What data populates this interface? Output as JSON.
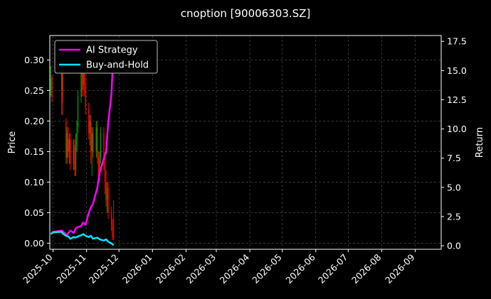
{
  "chart_data": {
    "type": "line",
    "title": "cnoption [90006303.SZ]",
    "ylabel_left": "Price",
    "ylabel_right": "Return",
    "ylim_left": [
      -0.01,
      0.34
    ],
    "ylim_right": [
      -0.3,
      18.0
    ],
    "yticks_left": [
      "0.00",
      "0.05",
      "0.10",
      "0.15",
      "0.20",
      "0.25",
      "0.30"
    ],
    "yticks_right": [
      "0.0",
      "2.5",
      "5.0",
      "7.5",
      "10.0",
      "12.5",
      "15.0",
      "17.5"
    ],
    "xlim": [
      "2025-09-28",
      "2026-09-25"
    ],
    "xticks": [
      "2025-10",
      "2025-11",
      "2025-12",
      "2026-01",
      "2026-02",
      "2026-03",
      "2026-04",
      "2026-05",
      "2026-06",
      "2026-07",
      "2026-08",
      "2026-09"
    ],
    "grid": true,
    "legend_position": "top-left",
    "colors": {
      "up": "#00a000",
      "down": "#ff0000",
      "strategy": "#ff00ff",
      "buyhold": "#00e5ff",
      "background": "#000000",
      "text": "#ffffff"
    },
    "candles": [
      {
        "date": "2025-09-29",
        "open": 0.25,
        "close": 0.27,
        "high": 0.29,
        "low": 0.24
      },
      {
        "date": "2025-09-30",
        "open": 0.27,
        "close": 0.24,
        "high": 0.275,
        "low": 0.23
      },
      {
        "date": "2025-10-09",
        "open": 0.25,
        "close": 0.29,
        "high": 0.3,
        "low": 0.21
      },
      {
        "date": "2025-10-10",
        "open": 0.28,
        "close": 0.23,
        "high": 0.285,
        "low": 0.21
      },
      {
        "date": "2025-10-13",
        "open": 0.2,
        "close": 0.14,
        "high": 0.205,
        "low": 0.13
      },
      {
        "date": "2025-10-14",
        "open": 0.14,
        "close": 0.18,
        "high": 0.19,
        "low": 0.13
      },
      {
        "date": "2025-10-15",
        "open": 0.17,
        "close": 0.15,
        "high": 0.19,
        "low": 0.14
      },
      {
        "date": "2025-10-16",
        "open": 0.15,
        "close": 0.17,
        "high": 0.18,
        "low": 0.13
      },
      {
        "date": "2025-10-17",
        "open": 0.17,
        "close": 0.13,
        "high": 0.18,
        "low": 0.12
      },
      {
        "date": "2025-10-20",
        "open": 0.13,
        "close": 0.16,
        "high": 0.17,
        "low": 0.12
      },
      {
        "date": "2025-10-21",
        "open": 0.16,
        "close": 0.12,
        "high": 0.17,
        "low": 0.11
      },
      {
        "date": "2025-10-22",
        "open": 0.12,
        "close": 0.16,
        "high": 0.18,
        "low": 0.11
      },
      {
        "date": "2025-10-23",
        "open": 0.16,
        "close": 0.18,
        "high": 0.2,
        "low": 0.15
      },
      {
        "date": "2025-10-24",
        "open": 0.19,
        "close": 0.24,
        "high": 0.25,
        "low": 0.18
      },
      {
        "date": "2025-10-27",
        "open": 0.24,
        "close": 0.28,
        "high": 0.3,
        "low": 0.23
      },
      {
        "date": "2025-10-28",
        "open": 0.28,
        "close": 0.25,
        "high": 0.29,
        "low": 0.24
      },
      {
        "date": "2025-10-29",
        "open": 0.26,
        "close": 0.3,
        "high": 0.31,
        "low": 0.25
      },
      {
        "date": "2025-10-30",
        "open": 0.3,
        "close": 0.26,
        "high": 0.31,
        "low": 0.24
      },
      {
        "date": "2025-10-31",
        "open": 0.26,
        "close": 0.22,
        "high": 0.27,
        "low": 0.21
      },
      {
        "date": "2025-11-03",
        "open": 0.22,
        "close": 0.18,
        "high": 0.23,
        "low": 0.17
      },
      {
        "date": "2025-11-04",
        "open": 0.18,
        "close": 0.2,
        "high": 0.21,
        "low": 0.16
      },
      {
        "date": "2025-11-05",
        "open": 0.2,
        "close": 0.15,
        "high": 0.21,
        "low": 0.13
      },
      {
        "date": "2025-11-06",
        "open": 0.15,
        "close": 0.18,
        "high": 0.19,
        "low": 0.11
      },
      {
        "date": "2025-11-07",
        "open": 0.18,
        "close": 0.15,
        "high": 0.19,
        "low": 0.14
      },
      {
        "date": "2025-11-10",
        "open": 0.15,
        "close": 0.19,
        "high": 0.2,
        "low": 0.14
      },
      {
        "date": "2025-11-11",
        "open": 0.19,
        "close": 0.14,
        "high": 0.2,
        "low": 0.13
      },
      {
        "date": "2025-11-12",
        "open": 0.14,
        "close": 0.11,
        "high": 0.15,
        "low": 0.1
      },
      {
        "date": "2025-11-13",
        "open": 0.11,
        "close": 0.14,
        "high": 0.15,
        "low": 0.1
      },
      {
        "date": "2025-11-14",
        "open": 0.14,
        "close": 0.18,
        "high": 0.19,
        "low": 0.13
      },
      {
        "date": "2025-11-17",
        "open": 0.18,
        "close": 0.14,
        "high": 0.19,
        "low": 0.12
      },
      {
        "date": "2025-11-18",
        "open": 0.14,
        "close": 0.1,
        "high": 0.15,
        "low": 0.08
      },
      {
        "date": "2025-11-19",
        "open": 0.1,
        "close": 0.07,
        "high": 0.12,
        "low": 0.06
      },
      {
        "date": "2025-11-20",
        "open": 0.07,
        "close": 0.09,
        "high": 0.1,
        "low": 0.05
      },
      {
        "date": "2025-11-21",
        "open": 0.09,
        "close": 0.05,
        "high": 0.1,
        "low": 0.04
      },
      {
        "date": "2025-11-24",
        "open": 0.05,
        "close": 0.03,
        "high": 0.06,
        "low": 0.02
      },
      {
        "date": "2025-11-25",
        "open": 0.03,
        "close": 0.01,
        "high": 0.04,
        "low": 0.005
      },
      {
        "date": "2025-11-26",
        "open": 0.012,
        "close": 0.008,
        "high": 0.07,
        "low": 0.005
      }
    ],
    "series": [
      {
        "name": "AI Strategy",
        "color": "#ff00ff",
        "x": [
          "2025-09-29",
          "2025-10-01",
          "2025-10-09",
          "2025-10-14",
          "2025-10-15",
          "2025-10-17",
          "2025-10-20",
          "2025-10-22",
          "2025-10-24",
          "2025-10-27",
          "2025-10-29",
          "2025-10-31",
          "2025-11-03",
          "2025-11-05",
          "2025-11-07",
          "2025-11-11",
          "2025-11-13",
          "2025-11-17",
          "2025-11-19",
          "2025-11-21",
          "2025-11-24",
          "2025-11-26"
        ],
        "values": [
          1.0,
          1.2,
          1.3,
          0.9,
          1.1,
          1.3,
          1.1,
          1.5,
          1.6,
          1.7,
          2.0,
          1.8,
          2.8,
          3.3,
          3.6,
          5.0,
          6.2,
          7.5,
          8.0,
          10.5,
          13.0,
          17.0
        ]
      },
      {
        "name": "Buy-and-Hold",
        "color": "#00e5ff",
        "x": [
          "2025-09-29",
          "2025-10-01",
          "2025-10-09",
          "2025-10-10",
          "2025-10-13",
          "2025-10-15",
          "2025-10-17",
          "2025-10-20",
          "2025-10-22",
          "2025-10-24",
          "2025-10-27",
          "2025-10-29",
          "2025-10-31",
          "2025-11-03",
          "2025-11-05",
          "2025-11-07",
          "2025-11-11",
          "2025-11-13",
          "2025-11-17",
          "2025-11-19",
          "2025-11-21",
          "2025-11-24",
          "2025-11-26"
        ],
        "values": [
          1.0,
          1.15,
          1.2,
          1.05,
          0.85,
          0.8,
          0.6,
          0.75,
          0.7,
          0.8,
          0.9,
          1.0,
          0.85,
          0.75,
          0.85,
          0.6,
          0.7,
          0.55,
          0.45,
          0.55,
          0.35,
          0.2,
          0.05
        ]
      }
    ]
  }
}
